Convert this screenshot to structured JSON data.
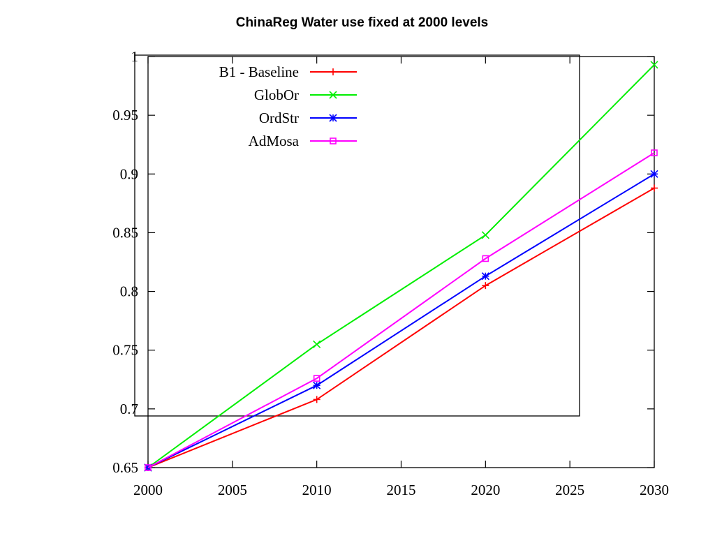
{
  "chart_data": {
    "type": "line",
    "title": "ChinaReg Water use fixed at 2000 levels",
    "xlabel": "",
    "ylabel": "",
    "x": [
      2000,
      2010,
      2020,
      2030
    ],
    "xlim": [
      2000,
      2030
    ],
    "ylim": [
      0.65,
      1.0
    ],
    "xticks": [
      2000,
      2005,
      2010,
      2015,
      2020,
      2025,
      2030
    ],
    "yticks": [
      0.65,
      0.7,
      0.75,
      0.8,
      0.85,
      0.9,
      0.95,
      1
    ],
    "xtick_labels": [
      "2000",
      "2005",
      "2010",
      "2015",
      "2020",
      "2025",
      "2030"
    ],
    "ytick_labels": [
      "0.65",
      "0.7",
      "0.75",
      "0.8",
      "0.85",
      "0.9",
      "0.95",
      "1"
    ],
    "grid": false,
    "legend_position": "top-left",
    "series": [
      {
        "name": "B1 - Baseline",
        "color": "#ff0000",
        "marker": "plus",
        "values": [
          0.65,
          0.708,
          0.805,
          0.888
        ]
      },
      {
        "name": "GlobOr",
        "color": "#00ee00",
        "marker": "cross",
        "values": [
          0.65,
          0.755,
          0.848,
          0.993
        ]
      },
      {
        "name": "OrdStr",
        "color": "#0000ff",
        "marker": "star",
        "values": [
          0.65,
          0.72,
          0.813,
          0.9
        ]
      },
      {
        "name": "AdMosa",
        "color": "#ff00ff",
        "marker": "square",
        "values": [
          0.65,
          0.726,
          0.828,
          0.918
        ]
      }
    ]
  }
}
